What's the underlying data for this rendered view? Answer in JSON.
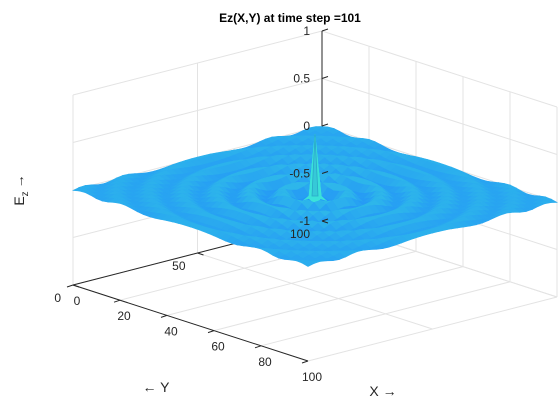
{
  "chart_data": {
    "type": "surface",
    "title": "Ez(X,Y) at time step =101",
    "xlabel": "X →",
    "ylabel": "← Y",
    "zlabel": "E",
    "zlabel_sub": "z",
    "zlabel_arrow": "→",
    "xlim": [
      0,
      100
    ],
    "ylim": [
      0,
      100
    ],
    "zlim": [
      -1,
      1
    ],
    "x_ticks": [
      "0",
      "20",
      "40",
      "60",
      "80",
      "100"
    ],
    "y_ticks": [
      "0",
      "50",
      "100"
    ],
    "z_ticks": [
      "-1",
      "-0.5",
      "0",
      "0.5",
      "1"
    ],
    "source_x": 50,
    "source_y": 50,
    "peak_value": 0.65,
    "grid": true,
    "colormap": "jet",
    "surface_color": "#2f8fff"
  }
}
